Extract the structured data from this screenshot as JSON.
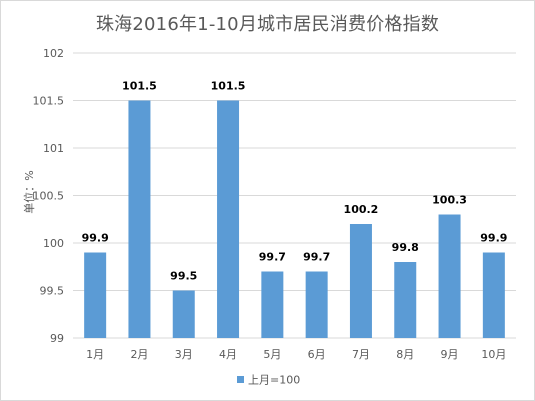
{
  "chart_data": {
    "type": "bar",
    "title": "珠海2016年1-10月城市居民消费价格指数",
    "ylabel": "单位：%",
    "xlabel": "",
    "categories": [
      "1月",
      "2月",
      "3月",
      "4月",
      "5月",
      "6月",
      "7月",
      "8月",
      "9月",
      "10月"
    ],
    "series": [
      {
        "name": "上月=100",
        "values": [
          99.9,
          101.5,
          99.5,
          101.5,
          99.7,
          99.7,
          100.2,
          99.8,
          100.3,
          99.9
        ],
        "color": "#5b9bd5"
      }
    ],
    "data_labels": [
      "99.9",
      "101.5",
      "99.5",
      "101.5",
      "99.7",
      "99.7",
      "100.2",
      "99.8",
      "100.3",
      "99.9"
    ],
    "ylim": [
      99,
      102
    ],
    "yticks": [
      "99",
      "99.5",
      "100",
      "100.5",
      "101",
      "101.5",
      "102"
    ],
    "grid": true,
    "legend_position": "bottom"
  }
}
